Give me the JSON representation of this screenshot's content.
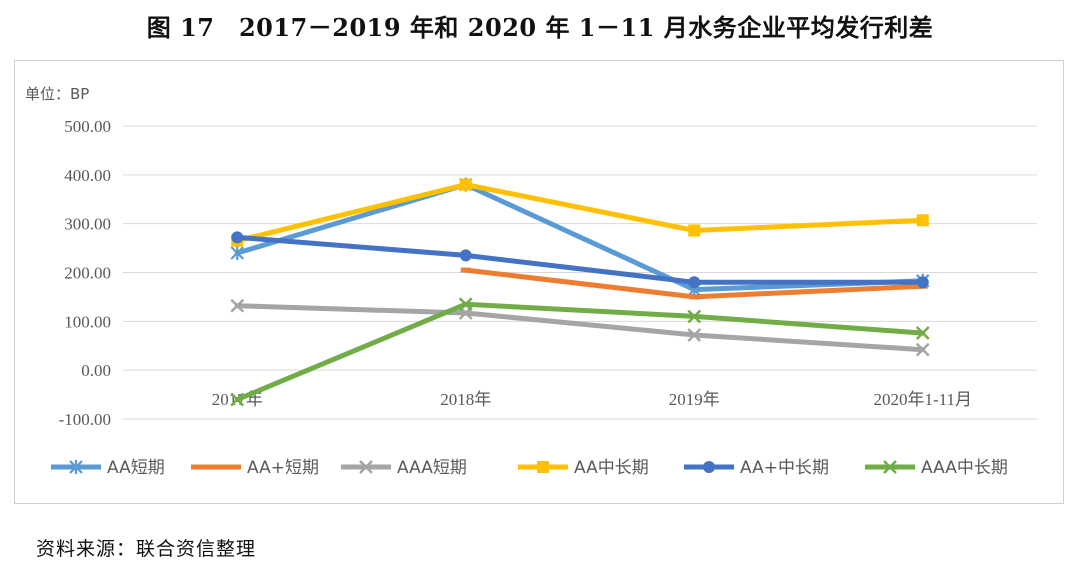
{
  "figure": {
    "title": "图 17　2017－2019 年和 2020 年 1－11 月水务企业平均发行利差",
    "source": "资料来源：联合资信整理"
  },
  "chart_data": {
    "type": "line",
    "unit_label": "单位：BP",
    "categories": [
      "2017年",
      "2018年",
      "2019年",
      "2020年1-11月"
    ],
    "y_ticks": [
      "500.00",
      "400.00",
      "300.00",
      "200.00",
      "100.00",
      "0.00",
      "-100.00"
    ],
    "ylim": [
      -100,
      500
    ],
    "grid": true,
    "legend_position": "bottom",
    "series": [
      {
        "name": "AA短期",
        "color": "#5B9BD5",
        "marker": "star",
        "values": [
          240,
          380,
          165,
          183
        ]
      },
      {
        "name": "AA+短期",
        "color": "#ED7D31",
        "marker": "dash",
        "values": [
          null,
          205,
          150,
          172
        ]
      },
      {
        "name": "AAA短期",
        "color": "#A5A5A5",
        "marker": "x",
        "values": [
          132,
          117,
          72,
          42
        ]
      },
      {
        "name": "AA中长期",
        "color": "#FFC000",
        "marker": "square",
        "values": [
          265,
          380,
          286,
          307
        ]
      },
      {
        "name": "AA+中长期",
        "color": "#4472C4",
        "marker": "circle",
        "values": [
          272,
          235,
          180,
          180
        ]
      },
      {
        "name": "AAA中长期",
        "color": "#70AD47",
        "marker": "x",
        "values": [
          -60,
          135,
          110,
          76
        ]
      }
    ]
  }
}
